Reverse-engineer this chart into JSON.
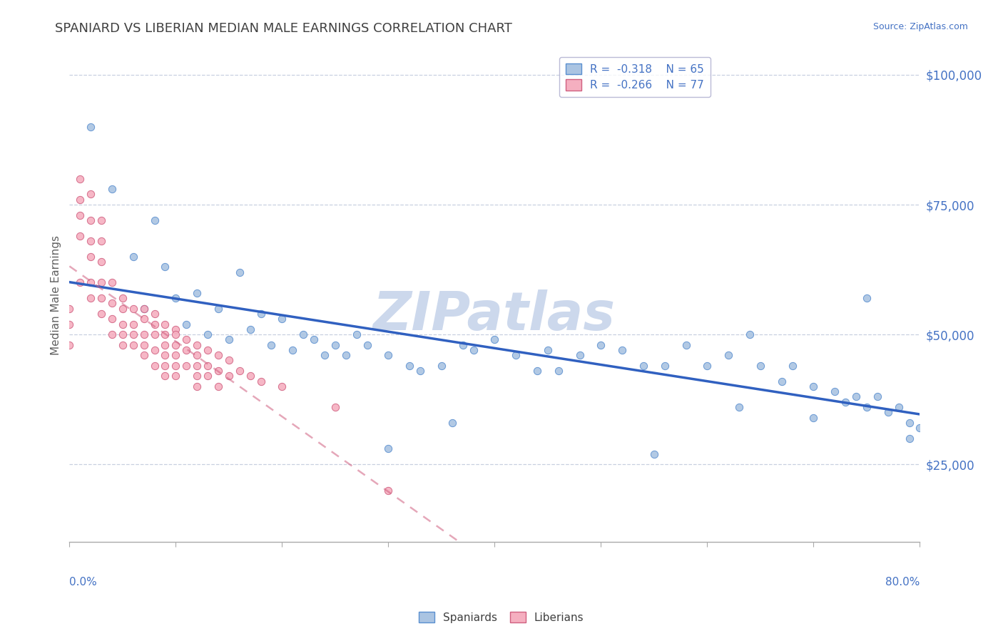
{
  "title": "SPANIARD VS LIBERIAN MEDIAN MALE EARNINGS CORRELATION CHART",
  "source": "Source: ZipAtlas.com",
  "ylabel": "Median Male Earnings",
  "yticks": [
    25000,
    50000,
    75000,
    100000
  ],
  "ytick_labels": [
    "$25,000",
    "$50,000",
    "$75,000",
    "$100,000"
  ],
  "xmin": 0.0,
  "xmax": 0.8,
  "ymin": 10000,
  "ymax": 105000,
  "spaniard_R": -0.318,
  "spaniard_N": 65,
  "liberian_R": -0.266,
  "liberian_N": 77,
  "spaniard_color": "#aac4e2",
  "liberian_color": "#f5afc0",
  "spaniard_edge_color": "#5a8fd0",
  "liberian_edge_color": "#d06080",
  "spaniard_line_color": "#3060c0",
  "liberian_line_color": "#d06080",
  "legend_text_color": "#4472c4",
  "title_color": "#404040",
  "source_color": "#4472c4",
  "axis_label_color": "#4472c4",
  "ylabel_color": "#606060",
  "watermark": "ZIPatlas",
  "watermark_color": "#ccd8ec",
  "spaniard_x": [
    0.02,
    0.04,
    0.06,
    0.08,
    0.07,
    0.09,
    0.1,
    0.11,
    0.12,
    0.13,
    0.14,
    0.15,
    0.16,
    0.17,
    0.18,
    0.19,
    0.2,
    0.21,
    0.22,
    0.23,
    0.24,
    0.25,
    0.26,
    0.27,
    0.28,
    0.3,
    0.32,
    0.33,
    0.35,
    0.37,
    0.38,
    0.4,
    0.42,
    0.44,
    0.45,
    0.48,
    0.5,
    0.52,
    0.54,
    0.56,
    0.58,
    0.6,
    0.62,
    0.64,
    0.65,
    0.67,
    0.68,
    0.7,
    0.72,
    0.73,
    0.74,
    0.75,
    0.76,
    0.77,
    0.78,
    0.79,
    0.79,
    0.8,
    0.36,
    0.3,
    0.55,
    0.46,
    0.63,
    0.7,
    0.75
  ],
  "spaniard_y": [
    90000,
    78000,
    65000,
    72000,
    55000,
    63000,
    57000,
    52000,
    58000,
    50000,
    55000,
    49000,
    62000,
    51000,
    54000,
    48000,
    53000,
    47000,
    50000,
    49000,
    46000,
    48000,
    46000,
    50000,
    48000,
    46000,
    44000,
    43000,
    44000,
    48000,
    47000,
    49000,
    46000,
    43000,
    47000,
    46000,
    48000,
    47000,
    44000,
    44000,
    48000,
    44000,
    46000,
    50000,
    44000,
    41000,
    44000,
    40000,
    39000,
    37000,
    38000,
    36000,
    38000,
    35000,
    36000,
    33000,
    30000,
    32000,
    33000,
    28000,
    27000,
    43000,
    36000,
    34000,
    57000
  ],
  "liberian_x": [
    0.0,
    0.0,
    0.0,
    0.01,
    0.01,
    0.01,
    0.01,
    0.01,
    0.02,
    0.02,
    0.02,
    0.02,
    0.02,
    0.02,
    0.03,
    0.03,
    0.03,
    0.03,
    0.03,
    0.03,
    0.04,
    0.04,
    0.04,
    0.04,
    0.05,
    0.05,
    0.05,
    0.05,
    0.05,
    0.06,
    0.06,
    0.06,
    0.06,
    0.07,
    0.07,
    0.07,
    0.07,
    0.07,
    0.08,
    0.08,
    0.08,
    0.08,
    0.08,
    0.09,
    0.09,
    0.09,
    0.09,
    0.09,
    0.09,
    0.1,
    0.1,
    0.1,
    0.1,
    0.1,
    0.1,
    0.11,
    0.11,
    0.11,
    0.12,
    0.12,
    0.12,
    0.12,
    0.12,
    0.13,
    0.13,
    0.13,
    0.14,
    0.14,
    0.14,
    0.15,
    0.15,
    0.16,
    0.17,
    0.18,
    0.2,
    0.25,
    0.3
  ],
  "liberian_y": [
    55000,
    52000,
    48000,
    80000,
    76000,
    73000,
    69000,
    60000,
    77000,
    72000,
    68000,
    65000,
    60000,
    57000,
    72000,
    68000,
    64000,
    60000,
    57000,
    54000,
    60000,
    56000,
    53000,
    50000,
    57000,
    55000,
    52000,
    50000,
    48000,
    55000,
    52000,
    50000,
    48000,
    55000,
    53000,
    50000,
    48000,
    46000,
    54000,
    52000,
    50000,
    47000,
    44000,
    52000,
    50000,
    48000,
    46000,
    44000,
    42000,
    51000,
    50000,
    48000,
    46000,
    44000,
    42000,
    49000,
    47000,
    44000,
    48000,
    46000,
    44000,
    42000,
    40000,
    47000,
    44000,
    42000,
    46000,
    43000,
    40000,
    45000,
    42000,
    43000,
    42000,
    41000,
    40000,
    36000,
    20000
  ],
  "liberian_trend_x_end": 0.52,
  "spaniard_trend_x_start": 0.0,
  "spaniard_trend_x_end": 0.8
}
